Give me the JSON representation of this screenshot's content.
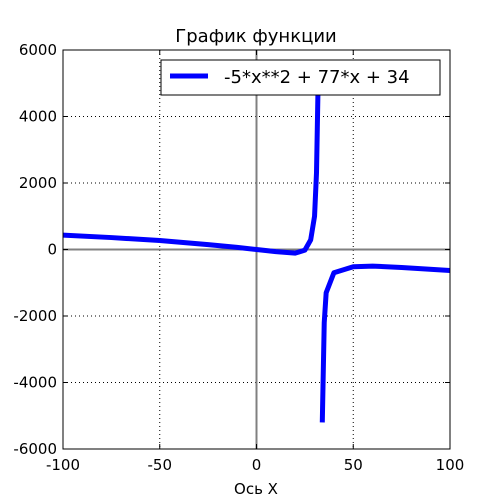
{
  "chart_data": {
    "type": "line",
    "title": "График функции",
    "xlabel": "Ось X",
    "ylabel": "",
    "xlim": [
      -100,
      100
    ],
    "ylim": [
      -6000,
      6000
    ],
    "grid": true,
    "xticks": [
      -100,
      -50,
      0,
      50,
      100
    ],
    "yticks": [
      -6000,
      -4000,
      -2000,
      0,
      2000,
      4000,
      6000
    ],
    "legend_position": "top-right",
    "series": [
      {
        "name": "-5*x**2 + 77*x + 34",
        "color": "#0000ff",
        "x": [
          -100,
          -75,
          -50,
          -25,
          -10,
          0,
          10,
          20,
          25,
          28,
          30,
          31,
          32,
          34,
          35,
          36,
          40,
          50,
          60,
          75,
          100
        ],
        "y": [
          434,
          359,
          270,
          147,
          63,
          0,
          -65,
          -110,
          -20,
          290,
          1000,
          2300,
          5500,
          -5200,
          -2200,
          -1300,
          -700,
          -520,
          -500,
          -540,
          -630
        ]
      }
    ],
    "zero_lines": true
  }
}
